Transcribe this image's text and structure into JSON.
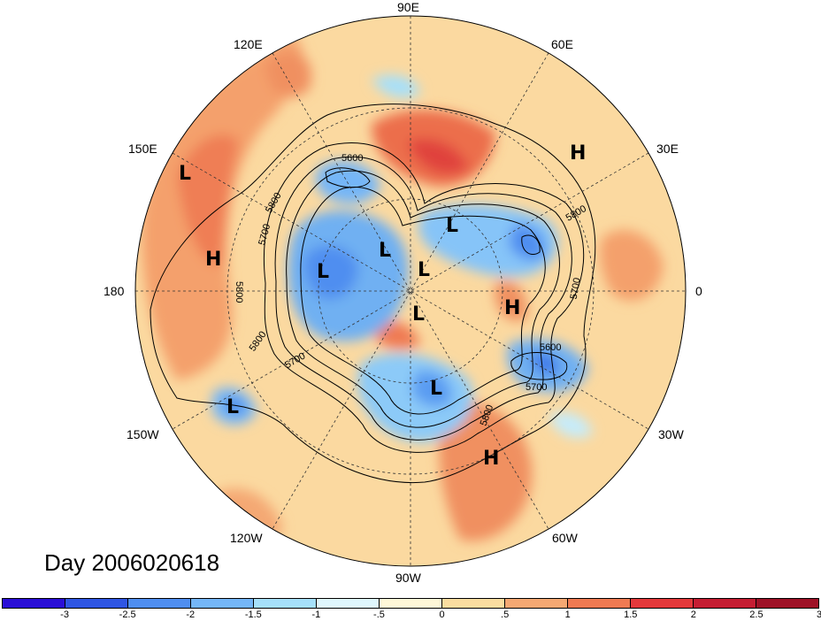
{
  "title": "Day 2006020618",
  "longitude_labels": [
    {
      "id": "90e",
      "text": "90E"
    },
    {
      "id": "60e",
      "text": "60E"
    },
    {
      "id": "120e",
      "text": "120E"
    },
    {
      "id": "30e",
      "text": "30E"
    },
    {
      "id": "150e",
      "text": "150E"
    },
    {
      "id": "0",
      "text": "0"
    },
    {
      "id": "180",
      "text": "180"
    },
    {
      "id": "30w",
      "text": "30W"
    },
    {
      "id": "150w",
      "text": "150W"
    },
    {
      "id": "60w",
      "text": "60W"
    },
    {
      "id": "120w",
      "text": "120W"
    },
    {
      "id": "90w",
      "text": "90W"
    }
  ],
  "pressure_systems": [
    {
      "type": "L"
    },
    {
      "type": "L"
    },
    {
      "type": "L"
    },
    {
      "type": "L"
    },
    {
      "type": "L"
    },
    {
      "type": "L"
    },
    {
      "type": "L"
    },
    {
      "type": "L"
    },
    {
      "type": "H"
    },
    {
      "type": "H"
    },
    {
      "type": "H"
    },
    {
      "type": "H"
    }
  ],
  "contour_labels": [
    "5600",
    "5800",
    "5700",
    "5800",
    "5700",
    "5800",
    "5700",
    "5600",
    "5700",
    "5800",
    "5800"
  ],
  "colorbar": {
    "colors": [
      "#2a0fd6",
      "#2f56e3",
      "#4f8ef0",
      "#74b6f7",
      "#a6e0fb",
      "#dff6fd",
      "#fff7d8",
      "#fbdda0",
      "#f4a873",
      "#ef7a52",
      "#e4393b",
      "#c51e33",
      "#9e1227"
    ],
    "tick_labels": [
      "-3",
      "-2.5",
      "-2",
      "-1.5",
      "-1",
      "-.5",
      "0",
      ".5",
      "1",
      "1.5",
      "2",
      "2.5",
      "3"
    ]
  }
}
